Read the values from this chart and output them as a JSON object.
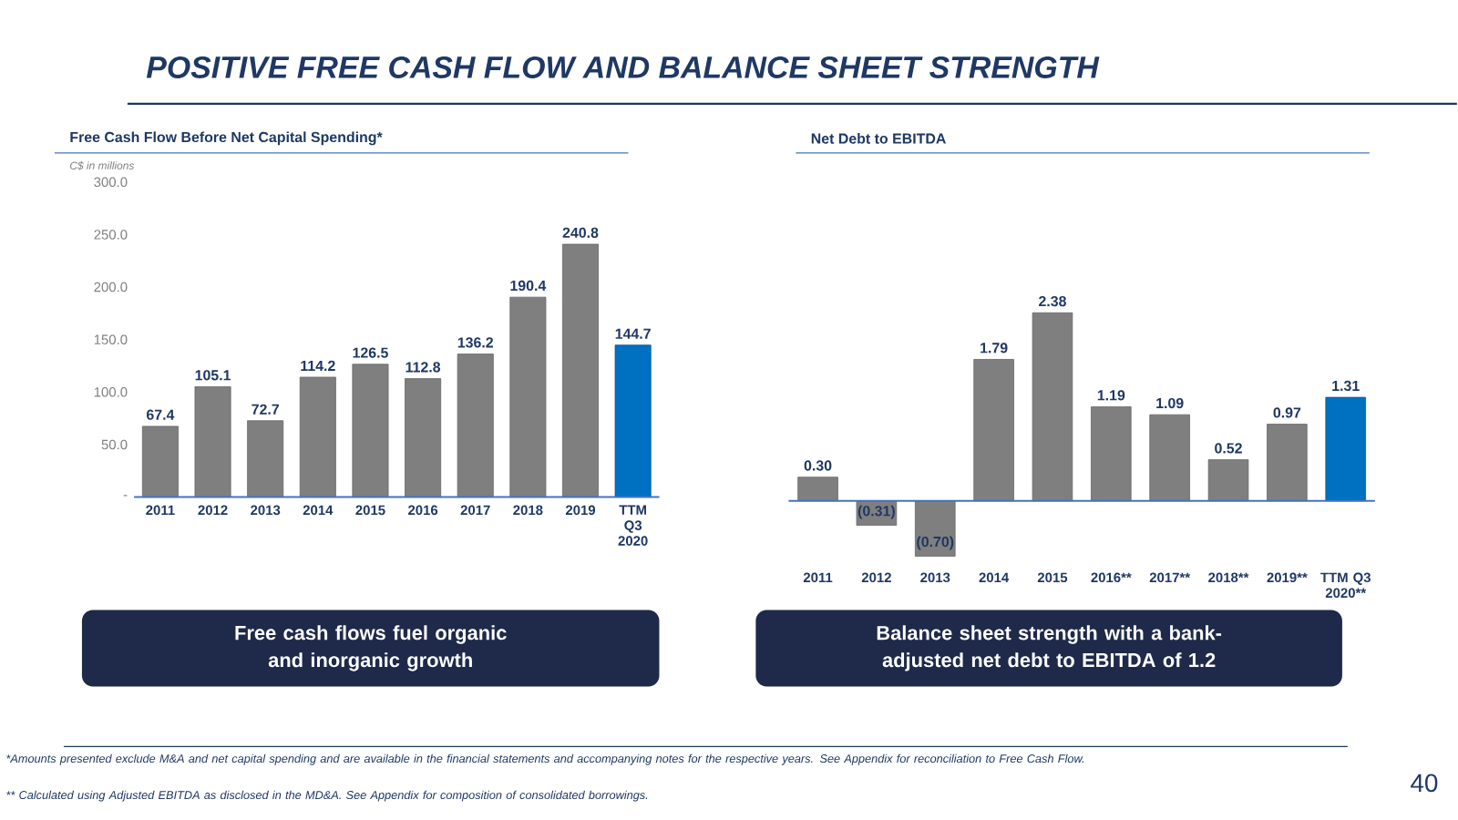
{
  "chart_data": [
    {
      "type": "bar",
      "title": "Free Cash Flow Before Net Capital Spending*",
      "ylabel": "C$ in millions",
      "categories": [
        "2011",
        "2012",
        "2013",
        "2014",
        "2015",
        "2016",
        "2017",
        "2018",
        "2019",
        "TTM Q3 2020"
      ],
      "values": [
        67.4,
        105.1,
        72.7,
        114.2,
        126.5,
        112.8,
        136.2,
        190.4,
        240.8,
        144.7
      ],
      "colors": [
        "#7f7f7f",
        "#7f7f7f",
        "#7f7f7f",
        "#7f7f7f",
        "#7f7f7f",
        "#7f7f7f",
        "#7f7f7f",
        "#7f7f7f",
        "#7f7f7f",
        "#0070c0"
      ],
      "ylim": [
        0,
        300
      ],
      "yticks": [
        {
          "value": 0,
          "label": "-"
        },
        {
          "value": 50,
          "label": "50.0"
        },
        {
          "value": 100,
          "label": "100.0"
        },
        {
          "value": 150,
          "label": "150.0"
        },
        {
          "value": 200,
          "label": "200.0"
        },
        {
          "value": 250,
          "label": "250.0"
        },
        {
          "value": 300,
          "label": "300.0"
        }
      ],
      "data_labels": true,
      "annotations": [
        "POSITIVE FREE CASH FLOW AND BALANCE SHEET STRENGTH",
        "Free cash flows fuel organic and inorganic growth",
        "*Amounts presented exclude M&A and net capital spending and are available in the financial statements and accompanying notes for the respective years. See Appendix for reconciliation to Free Cash Flow."
      ]
    },
    {
      "type": "bar",
      "title": "Net Debt to EBITDA",
      "categories": [
        "2011",
        "2012",
        "2013",
        "2014",
        "2015",
        "2016**",
        "2017**",
        "2018**",
        "2019**",
        "TTM Q3 2020**"
      ],
      "values": [
        0.3,
        -0.31,
        -0.7,
        1.79,
        2.38,
        1.19,
        1.09,
        0.52,
        0.97,
        1.31
      ],
      "value_labels": [
        "0.30",
        "(0.31)",
        "(0.70)",
        "1.79",
        "2.38",
        "1.19",
        "1.09",
        "0.52",
        "0.97",
        "1.31"
      ],
      "colors": [
        "#7f7f7f",
        "#7f7f7f",
        "#7f7f7f",
        "#7f7f7f",
        "#7f7f7f",
        "#7f7f7f",
        "#7f7f7f",
        "#7f7f7f",
        "#7f7f7f",
        "#0070c0"
      ],
      "tick_labels": "x",
      "ref_lines": [
        {
          "axis": "y",
          "value": 0,
          "color": "#4472c4"
        }
      ],
      "annotations": [
        "Balance sheet strength with a bank-adjusted net debt to EBITDA of 1.2",
        "** Calculated using Adjusted EBITDA as disclosed in the MD&A. See Appendix for composition of consolidated borrowings.",
        "40"
      ]
    }
  ]
}
